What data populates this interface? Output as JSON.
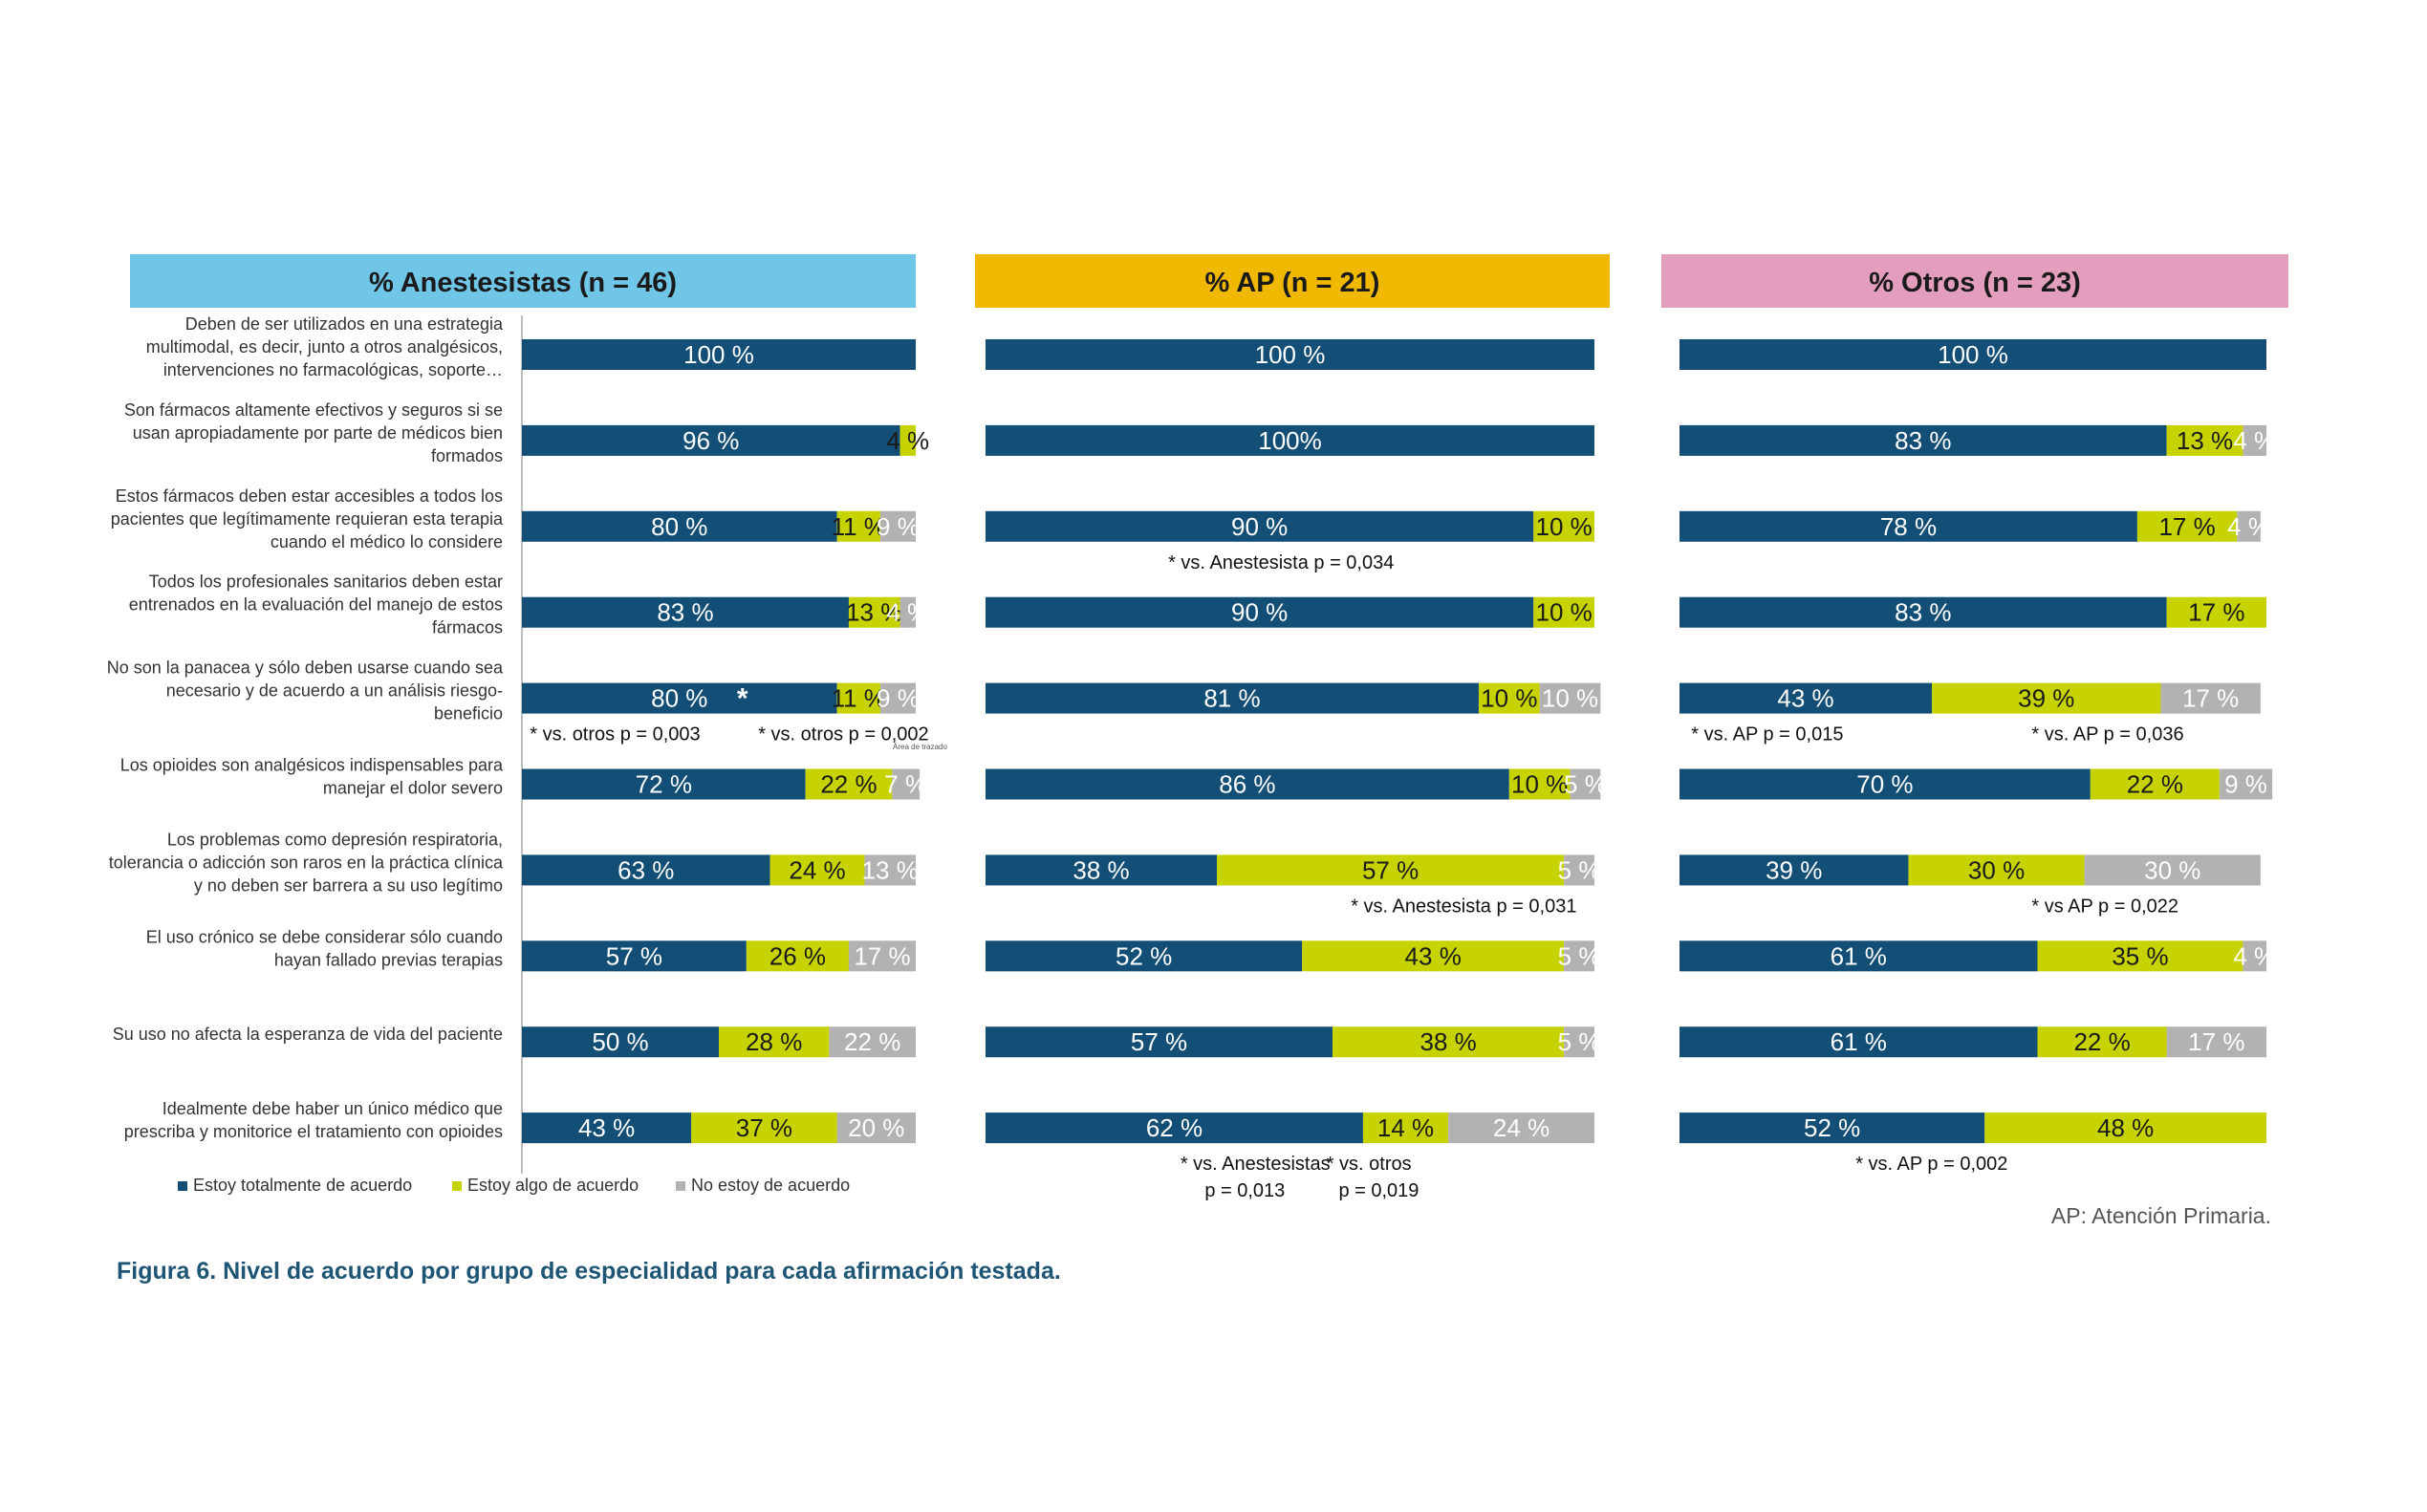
{
  "chart_data": {
    "type": "bar",
    "stacked": true,
    "orientation": "horizontal",
    "colors": {
      "Estoy totalmente de acuerdo": "#124e75",
      "Estoy algo de acuerdo": "#c7d300",
      "No estoy de acuerdo": "#b3b1b1"
    },
    "categories": [
      "Deben de ser utilizados en una estrategia multimodal, es decir, junto a otros analgésicos, intervenciones no farmacológicas, soporte…",
      "Son fármacos altamente efectivos y seguros si se usan apropiadamente por parte de médicos bien formados",
      "Estos fármacos deben estar accesibles a todos los pacientes que legítimamente requieran esta terapia cuando el médico lo considere",
      "Todos los profesionales sanitarios deben estar entrenados en la evaluación del manejo de estos fármacos",
      "No son la panacea y sólo deben usarse cuando sea necesario y de acuerdo a un análisis riesgo-beneficio",
      "Los opioides son analgésicos indispensables para manejar el dolor severo",
      "Los problemas como depresión respiratoria, tolerancia o adicción son raros en la práctica clínica y no deben ser barrera a su uso legítimo",
      "El uso crónico se debe considerar sólo cuando hayan fallado previas terapias",
      "Su uso no afecta la esperanza de vida del paciente",
      "Idealmente debe haber un único médico que prescriba y monitorice el tratamiento con opioides"
    ],
    "category_lines": [
      [
        "Deben de ser utilizados en una estrategia",
        "multimodal, es decir, junto a otros analgésicos,",
        "intervenciones no farmacológicas, soporte…"
      ],
      [
        "Son fármacos altamente efectivos y seguros si se",
        "usan apropiadamente por parte de médicos bien",
        "formados"
      ],
      [
        "Estos fármacos deben estar accesibles a todos los",
        "pacientes que legítimamente requieran esta terapia",
        "cuando el médico lo considere"
      ],
      [
        "Todos los profesionales sanitarios deben estar",
        "entrenados en la evaluación del manejo de estos",
        "fármacos"
      ],
      [
        "No son la panacea y sólo deben usarse cuando sea",
        "necesario y de acuerdo a un análisis riesgo-",
        "beneficio"
      ],
      [
        "Los opioides son analgésicos indispensables para",
        "manejar el dolor severo"
      ],
      [
        "Los problemas como depresión respiratoria,",
        "tolerancia o adicción son raros en la práctica clínica",
        "y no deben ser barrera a su uso legítimo"
      ],
      [
        "El uso crónico se debe considerar sólo cuando",
        "hayan fallado previas terapias"
      ],
      [
        "Su uso no afecta la esperanza de vida del paciente"
      ],
      [
        "Idealmente debe haber un único médico que",
        "prescriba y monitorice el tratamiento con opioides"
      ]
    ],
    "series_names": [
      "Estoy totalmente de acuerdo",
      "Estoy algo de acuerdo",
      "No estoy de acuerdo"
    ],
    "panels": [
      {
        "title": "% Anestesistas (n = 46)",
        "header_color": "#6fc6e6",
        "rows": [
          {
            "values": [
              100,
              0,
              0
            ],
            "labels": [
              "100 %",
              "",
              ""
            ]
          },
          {
            "values": [
              96,
              4,
              0
            ],
            "labels": [
              "96 %",
              "4 %",
              ""
            ]
          },
          {
            "values": [
              80,
              11,
              9
            ],
            "labels": [
              "80 %",
              "11 %",
              "9 %"
            ]
          },
          {
            "values": [
              83,
              13,
              4
            ],
            "labels": [
              "83 %",
              "13 %",
              "4 %"
            ]
          },
          {
            "values": [
              80,
              11,
              9
            ],
            "labels": [
              "80 %",
              "11 %",
              "9 %"
            ]
          },
          {
            "values": [
              72,
              22,
              7
            ],
            "labels": [
              "72 %",
              "22 %",
              "7 %"
            ]
          },
          {
            "values": [
              63,
              24,
              13
            ],
            "labels": [
              "63 %",
              "24 %",
              "13 %"
            ]
          },
          {
            "values": [
              57,
              26,
              17
            ],
            "labels": [
              "57 %",
              "26 %",
              "17 %"
            ]
          },
          {
            "values": [
              50,
              28,
              22
            ],
            "labels": [
              "50 %",
              "28 %",
              "22 %"
            ]
          },
          {
            "values": [
              43,
              37,
              20
            ],
            "labels": [
              "43 %",
              "37 %",
              "20 %"
            ]
          }
        ]
      },
      {
        "title": "% AP (n = 21)",
        "header_color": "#f1b800",
        "rows": [
          {
            "values": [
              100,
              0,
              0
            ],
            "labels": [
              "100 %",
              "",
              ""
            ]
          },
          {
            "values": [
              100,
              0,
              0
            ],
            "labels": [
              "100%",
              "",
              ""
            ]
          },
          {
            "values": [
              90,
              10,
              0
            ],
            "labels": [
              "90 %",
              "10 %",
              ""
            ]
          },
          {
            "values": [
              90,
              10,
              0
            ],
            "labels": [
              "90 %",
              "10 %",
              ""
            ]
          },
          {
            "values": [
              81,
              10,
              10
            ],
            "labels": [
              "81 %",
              "10 %",
              "10 %"
            ]
          },
          {
            "values": [
              86,
              10,
              5
            ],
            "labels": [
              "86 %",
              "10 %",
              "5 %"
            ]
          },
          {
            "values": [
              38,
              57,
              5
            ],
            "labels": [
              "38 %",
              "57 %",
              "5 %"
            ]
          },
          {
            "values": [
              52,
              43,
              5
            ],
            "labels": [
              "52 %",
              "43 %",
              "5 %"
            ]
          },
          {
            "values": [
              57,
              38,
              5
            ],
            "labels": [
              "57 %",
              "38 %",
              "5 %"
            ]
          },
          {
            "values": [
              62,
              14,
              24
            ],
            "labels": [
              "62 %",
              "14 %",
              "24 %"
            ]
          }
        ]
      },
      {
        "title": "% Otros (n = 23)",
        "header_color": "#e39ebd",
        "rows": [
          {
            "values": [
              100,
              0,
              0
            ],
            "labels": [
              "100 %",
              "",
              ""
            ]
          },
          {
            "values": [
              83,
              13,
              4
            ],
            "labels": [
              "83 %",
              "13 %",
              "4 %"
            ]
          },
          {
            "values": [
              78,
              17,
              4
            ],
            "labels": [
              "78 %",
              "17 %",
              "4 %"
            ]
          },
          {
            "values": [
              83,
              17,
              0
            ],
            "labels": [
              "83 %",
              "17 %",
              ""
            ]
          },
          {
            "values": [
              43,
              39,
              17
            ],
            "labels": [
              "43 %",
              "39 %",
              "17 %"
            ]
          },
          {
            "values": [
              70,
              22,
              9
            ],
            "labels": [
              "70 %",
              "22 %",
              "9 %"
            ]
          },
          {
            "values": [
              39,
              30,
              30
            ],
            "labels": [
              "39 %",
              "30 %",
              "30 %"
            ]
          },
          {
            "values": [
              61,
              35,
              4
            ],
            "labels": [
              "61 %",
              "35 %",
              "4 %"
            ]
          },
          {
            "values": [
              61,
              22,
              17
            ],
            "labels": [
              "61 %",
              "22 %",
              "17 %"
            ]
          },
          {
            "values": [
              52,
              48,
              0
            ],
            "labels": [
              "52 %",
              "48 %",
              ""
            ]
          }
        ]
      }
    ],
    "annotations": [
      {
        "panel": 0,
        "row": 4,
        "text": "*",
        "place": "inline"
      },
      {
        "panel": 0,
        "row": 4,
        "text": "* vs. otros  p = 0,003",
        "place": "below-left"
      },
      {
        "panel": 0,
        "row": 4,
        "text": "* vs. otros p = 0,002",
        "place": "below-right"
      },
      {
        "panel": 1,
        "row": 2,
        "text": "* vs. Anestesista p = 0,034",
        "place": "below-mid"
      },
      {
        "panel": 1,
        "row": 6,
        "text": "* vs. Anestesista p = 0,031",
        "place": "below-right"
      },
      {
        "panel": 1,
        "row": 9,
        "text": "* vs. Anestesistas",
        "place": "below-mid-1"
      },
      {
        "panel": 1,
        "row": 9,
        "text": "p = 0,013",
        "place": "below-mid-2"
      },
      {
        "panel": 1,
        "row": 9,
        "text": "* vs. otros",
        "place": "below-right-1"
      },
      {
        "panel": 1,
        "row": 9,
        "text": "p = 0,019",
        "place": "below-right-2"
      },
      {
        "panel": 2,
        "row": 4,
        "text": "* vs. AP p = 0,015",
        "place": "below-left"
      },
      {
        "panel": 2,
        "row": 4,
        "text": "* vs. AP p = 0,036",
        "place": "below-right"
      },
      {
        "panel": 2,
        "row": 6,
        "text": "* vs AP  p = 0,022",
        "place": "below-right"
      },
      {
        "panel": 2,
        "row": 9,
        "text": "* vs. AP p = 0,002",
        "place": "below-mid"
      }
    ],
    "xlim": [
      0,
      100
    ]
  },
  "tooltip_fragment": "Área de trazado",
  "footnote": "AP: Atención Primaria.",
  "caption": "Figura 6. Nivel de acuerdo por grupo de especialidad para cada afirmación testada."
}
